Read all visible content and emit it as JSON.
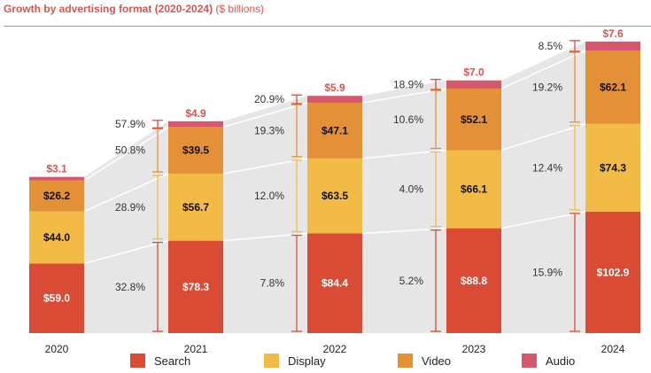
{
  "colors": {
    "Search": "#d94b35",
    "Display": "#f2bb46",
    "Video": "#e49037",
    "Audio": "#d6586c",
    "band": "#e6e6e6",
    "total": "#d9534f"
  },
  "chart_data": {
    "type": "bar",
    "stacked": true,
    "title": "Growth by advertising format (2020-2024)",
    "unit": "($ billions)",
    "categories": [
      "2020",
      "2021",
      "2022",
      "2023",
      "2024"
    ],
    "series": [
      {
        "name": "Search",
        "values": [
          59.0,
          78.3,
          84.4,
          88.8,
          102.9
        ],
        "labels": [
          "$59.0",
          "$78.3",
          "$84.4",
          "$88.8",
          "$102.9"
        ]
      },
      {
        "name": "Display",
        "values": [
          44.0,
          56.7,
          63.5,
          66.1,
          74.3
        ],
        "labels": [
          "$44.0",
          "$56.7",
          "$63.5",
          "$66.1",
          "$74.3"
        ]
      },
      {
        "name": "Video",
        "values": [
          26.2,
          39.5,
          47.1,
          52.1,
          62.1
        ],
        "labels": [
          "$26.2",
          "$39.5",
          "$47.1",
          "$52.1",
          "$62.1"
        ]
      },
      {
        "name": "Audio",
        "values": [
          3.1,
          4.9,
          5.9,
          7.0,
          7.6
        ],
        "labels": [
          "$3.1",
          "$4.9",
          "$5.9",
          "$7.0",
          "$7.6"
        ]
      }
    ],
    "growth": {
      "Search": [
        "32.8%",
        "7.8%",
        "5.2%",
        "15.9%"
      ],
      "Display": [
        "28.9%",
        "12.0%",
        "4.0%",
        "12.4%"
      ],
      "Video": [
        "50.8%",
        "19.3%",
        "10.6%",
        "19.2%"
      ],
      "Audio": [
        "57.9%",
        "20.9%",
        "18.9%",
        "8.5%"
      ]
    },
    "legend": [
      "Search",
      "Display",
      "Video",
      "Audio"
    ],
    "legend_position": "bottom",
    "grid": false
  }
}
